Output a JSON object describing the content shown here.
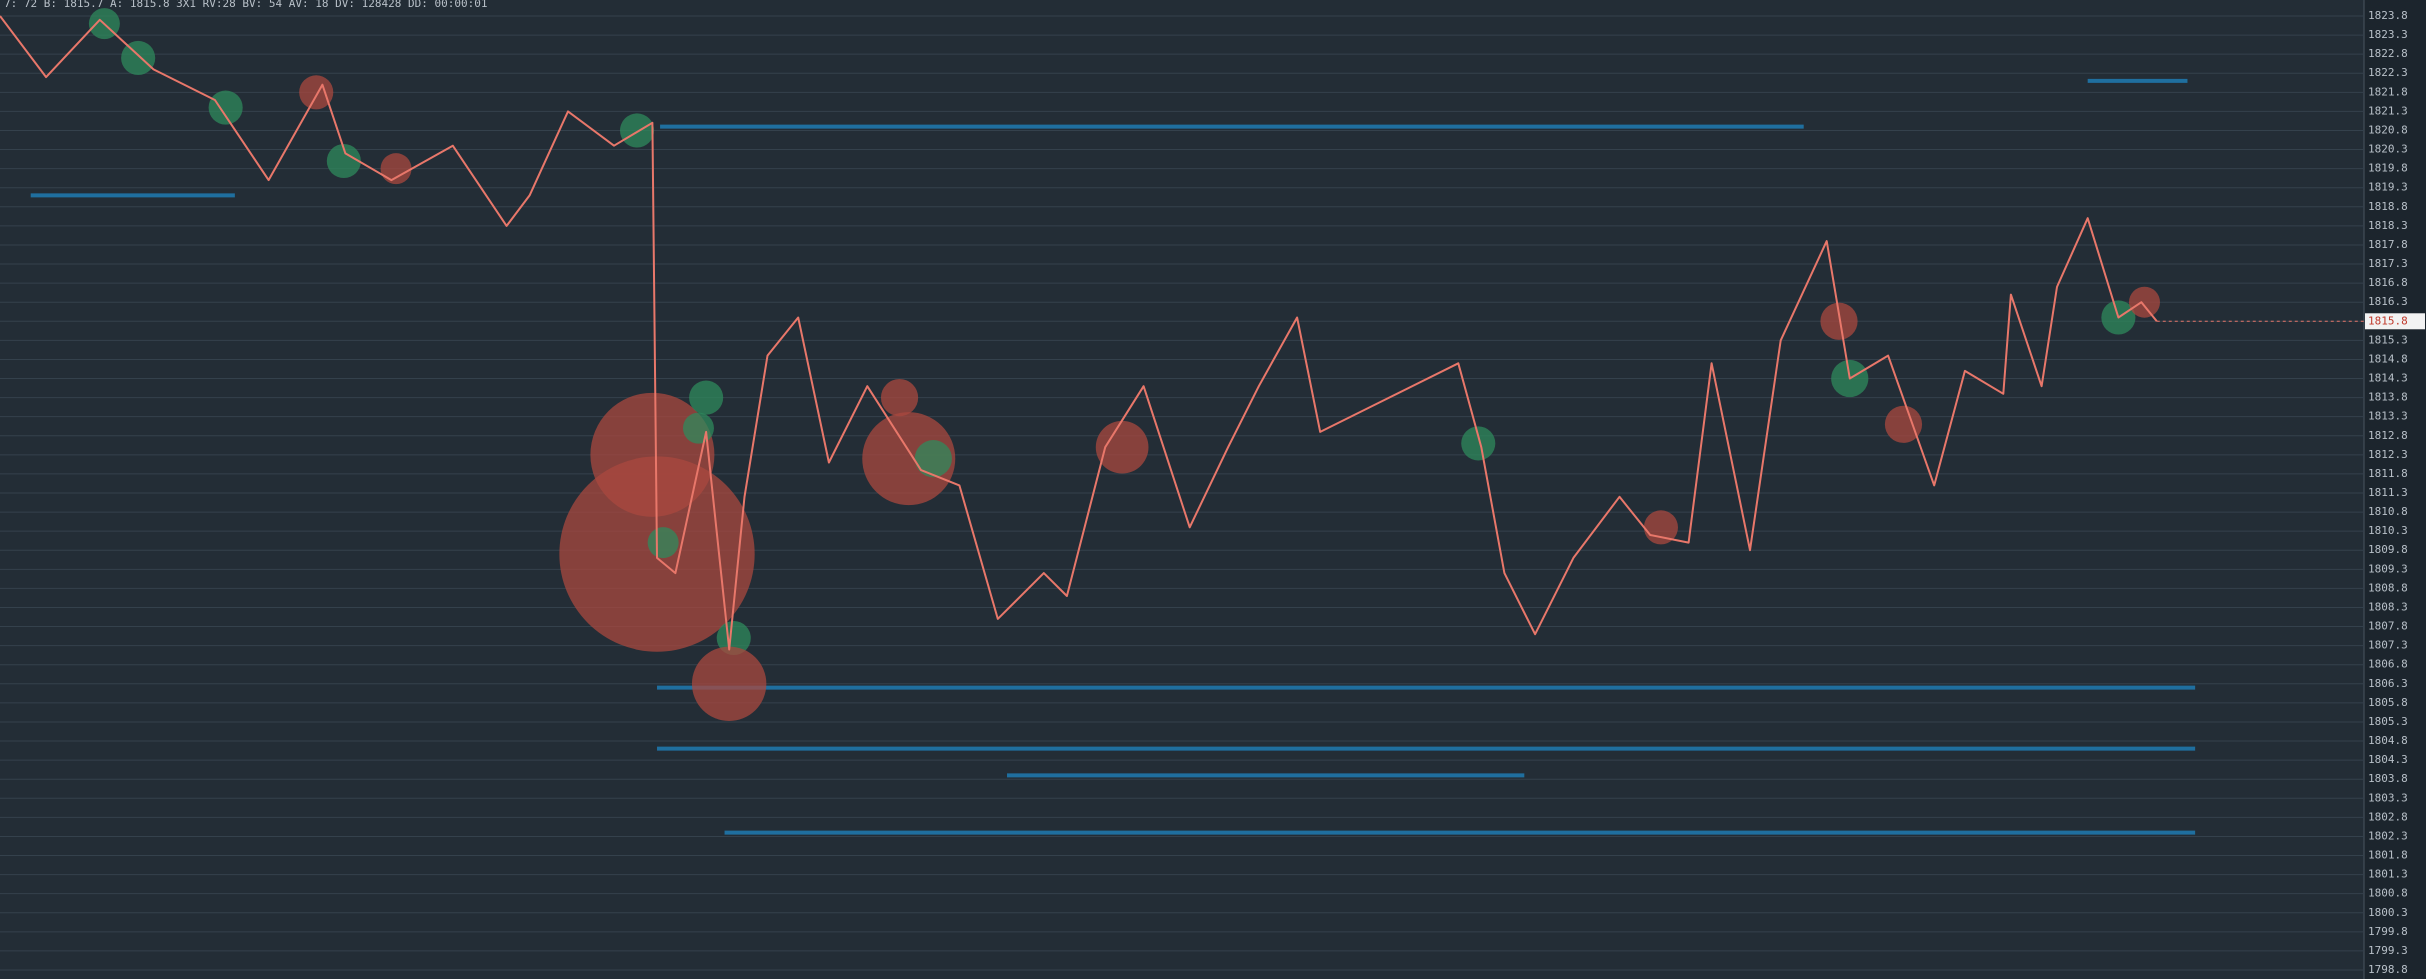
{
  "chart_data": {
    "type": "line",
    "title": "7: 72 B: 1815.7 A: 1815.8 3X1 RV:28 BV: 54 AV: 18 DV: 128428 DD: 00:00:01",
    "x": [
      0,
      30,
      65,
      100,
      140,
      175,
      210,
      225,
      255,
      295,
      330,
      345,
      370,
      400,
      425,
      428,
      440,
      460,
      475,
      485,
      500,
      520,
      540,
      565,
      600,
      625,
      650,
      680,
      695,
      720,
      745,
      775,
      800,
      820,
      845,
      860,
      900,
      950,
      965,
      980,
      1000,
      1025,
      1055,
      1075,
      1100,
      1115,
      1140,
      1160,
      1190,
      1205,
      1230,
      1260,
      1280,
      1305,
      1310,
      1330,
      1340,
      1360,
      1380,
      1395,
      1405
    ],
    "values": [
      1823.8,
      1822.2,
      1823.7,
      1822.4,
      1821.6,
      1819.5,
      1822.0,
      1820.2,
      1819.5,
      1820.4,
      1818.3,
      1819.1,
      1821.3,
      1820.4,
      1821.0,
      1809.6,
      1809.2,
      1812.9,
      1807.2,
      1811.2,
      1814.9,
      1815.9,
      1812.1,
      1814.1,
      1811.9,
      1811.5,
      1808.0,
      1809.2,
      1808.6,
      1812.5,
      1814.1,
      1810.4,
      1812.5,
      1814.1,
      1815.9,
      1812.9,
      1813.7,
      1814.7,
      1812.5,
      1809.2,
      1807.6,
      1809.6,
      1811.2,
      1810.2,
      1810.0,
      1814.7,
      1809.8,
      1815.3,
      1817.9,
      1814.3,
      1814.9,
      1811.5,
      1814.5,
      1813.9,
      1816.5,
      1814.1,
      1816.7,
      1818.5,
      1815.9,
      1816.3,
      1815.8
    ],
    "color": "#e8776a",
    "buy_color": "#2f8a5c",
    "sell_color": "#a9483f",
    "bubbles": [
      {
        "x": 68,
        "y": 1823.6,
        "size": 10,
        "side": "buy"
      },
      {
        "x": 90,
        "y": 1822.7,
        "size": 11,
        "side": "buy"
      },
      {
        "x": 147,
        "y": 1821.4,
        "size": 11,
        "side": "buy"
      },
      {
        "x": 206,
        "y": 1821.8,
        "size": 11,
        "side": "sell"
      },
      {
        "x": 224,
        "y": 1820.0,
        "size": 11,
        "side": "buy"
      },
      {
        "x": 258,
        "y": 1819.8,
        "size": 10,
        "side": "sell"
      },
      {
        "x": 415,
        "y": 1820.8,
        "size": 11,
        "side": "buy"
      },
      {
        "x": 425,
        "y": 1812.3,
        "size": 40,
        "side": "sell"
      },
      {
        "x": 428,
        "y": 1809.7,
        "size": 63,
        "side": "sell"
      },
      {
        "x": 460,
        "y": 1813.8,
        "size": 11,
        "side": "buy"
      },
      {
        "x": 455,
        "y": 1813.0,
        "size": 10,
        "side": "buy"
      },
      {
        "x": 432,
        "y": 1810.0,
        "size": 10,
        "side": "buy"
      },
      {
        "x": 478,
        "y": 1807.5,
        "size": 11,
        "side": "buy"
      },
      {
        "x": 475,
        "y": 1806.3,
        "size": 24,
        "side": "sell"
      },
      {
        "x": 586,
        "y": 1813.8,
        "size": 12,
        "side": "sell"
      },
      {
        "x": 592,
        "y": 1812.2,
        "size": 30,
        "side": "sell"
      },
      {
        "x": 608,
        "y": 1812.2,
        "size": 12,
        "side": "buy"
      },
      {
        "x": 731,
        "y": 1812.5,
        "size": 17,
        "side": "sell"
      },
      {
        "x": 963,
        "y": 1812.6,
        "size": 11,
        "side": "buy"
      },
      {
        "x": 1082,
        "y": 1810.4,
        "size": 11,
        "side": "sell"
      },
      {
        "x": 1198,
        "y": 1815.8,
        "size": 12,
        "side": "sell"
      },
      {
        "x": 1205,
        "y": 1814.3,
        "size": 12,
        "side": "buy"
      },
      {
        "x": 1240,
        "y": 1813.1,
        "size": 12,
        "side": "sell"
      },
      {
        "x": 1380,
        "y": 1815.9,
        "size": 11,
        "side": "buy"
      },
      {
        "x": 1397,
        "y": 1816.3,
        "size": 10,
        "side": "sell"
      }
    ],
    "level_color": "#1f6f9f",
    "levels": [
      {
        "price": 1820.9,
        "x_start": 430,
        "x_end": 1175
      },
      {
        "price": 1819.1,
        "x_start": 20,
        "x_end": 153
      },
      {
        "price": 1822.1,
        "x_start": 1360,
        "x_end": 1425
      },
      {
        "price": 1806.2,
        "x_start": 428,
        "x_end": 1430
      },
      {
        "price": 1804.6,
        "x_start": 428,
        "x_end": 1430
      },
      {
        "price": 1803.9,
        "x_start": 656,
        "x_end": 993
      },
      {
        "price": 1802.4,
        "x_start": 472,
        "x_end": 1430
      }
    ],
    "last_price": 1815.8,
    "xlim": [
      0,
      1540
    ],
    "ylim": [
      1798.8,
      1823.8
    ],
    "yticks": [
      1798.8,
      1799.3,
      1799.8,
      1800.3,
      1800.8,
      1801.3,
      1801.8,
      1802.3,
      1802.8,
      1803.3,
      1803.8,
      1804.3,
      1804.8,
      1805.3,
      1805.8,
      1806.3,
      1806.8,
      1807.3,
      1807.8,
      1808.3,
      1808.8,
      1809.3,
      1809.8,
      1810.3,
      1810.8,
      1811.3,
      1811.8,
      1812.3,
      1812.8,
      1813.3,
      1813.8,
      1814.3,
      1814.8,
      1815.3,
      1815.8,
      1816.3,
      1816.8,
      1817.3,
      1817.8,
      1818.3,
      1818.8,
      1819.3,
      1819.8,
      1820.3,
      1820.8,
      1821.3,
      1821.8,
      1822.3,
      1822.8,
      1823.3,
      1823.8
    ],
    "grid": true
  }
}
